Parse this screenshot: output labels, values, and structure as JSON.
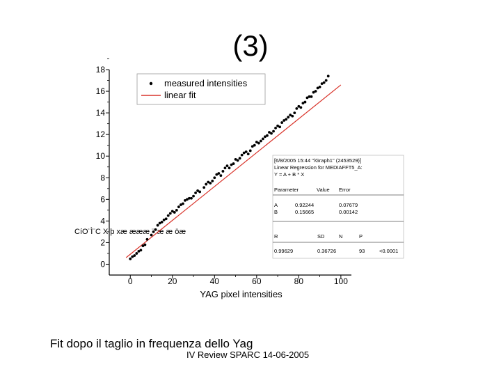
{
  "slide": {
    "title": "(3)",
    "caption": "Fit dopo il taglio in frequenza dello Yag",
    "footer": "IV Review SPARC 14-06-2005"
  },
  "chart_data": {
    "type": "scatter",
    "title": "",
    "xlabel": "YAG pixel intensities",
    "ylabel": "",
    "xlim": [
      -10,
      105
    ],
    "ylim": [
      -1,
      18
    ],
    "x_ticks": [
      "0",
      "20",
      "40",
      "60",
      "80",
      "100"
    ],
    "y_ticks": [
      "0",
      "2",
      "4",
      "6",
      "8",
      "10",
      "12",
      "14",
      "16",
      "18"
    ],
    "y_label_garble": "CíO¨Ì¨C X  þ xæ  æææ ¨¨æ æ öæ",
    "legend": [
      {
        "label": "measured intensities",
        "marker": "dot",
        "color": "#000000"
      },
      {
        "label": "linear fit",
        "marker": "line",
        "color": "#d9342b"
      }
    ],
    "legend_position": "top-left",
    "grid": false,
    "fit": {
      "A": 0.92244,
      "B": 0.15665
    },
    "series": [
      {
        "name": "measured intensities",
        "x": [
          0,
          1,
          2,
          3,
          4,
          5,
          6,
          7,
          8,
          10,
          11,
          12,
          13,
          14,
          15,
          16,
          17,
          18,
          19,
          20,
          21,
          22,
          23,
          24,
          25,
          26,
          27,
          28,
          29,
          30,
          31,
          32,
          33,
          35,
          36,
          37,
          38,
          39,
          40,
          41,
          42,
          43,
          44,
          45,
          46,
          47,
          48,
          49,
          50,
          51,
          52,
          53,
          54,
          55,
          56,
          57,
          58,
          59,
          60,
          61,
          62,
          63,
          64,
          65,
          66,
          67,
          68,
          69,
          70,
          71,
          72,
          73,
          74,
          75,
          76,
          77,
          78,
          79,
          80,
          81,
          82,
          83,
          84,
          85,
          86,
          87,
          88,
          89,
          90,
          91,
          92,
          93,
          94
        ],
        "y": [
          0.5,
          0.7,
          0.8,
          1.0,
          1.2,
          1.3,
          1.7,
          1.8,
          2.3,
          2.7,
          3.0,
          3.2,
          3.6,
          3.8,
          3.9,
          4.1,
          4.2,
          4.5,
          4.7,
          4.9,
          4.8,
          5.0,
          5.3,
          5.5,
          5.6,
          5.9,
          6.0,
          6.1,
          6.1,
          6.3,
          6.6,
          6.8,
          6.7,
          7.1,
          7.4,
          7.6,
          7.5,
          7.7,
          8.0,
          8.3,
          8.4,
          8.2,
          8.6,
          8.9,
          9.1,
          8.9,
          9.2,
          9.3,
          9.7,
          9.6,
          9.8,
          10.1,
          10.3,
          10.4,
          10.2,
          10.5,
          10.9,
          11.0,
          11.3,
          11.2,
          11.4,
          11.6,
          11.8,
          11.9,
          12.2,
          12.1,
          12.3,
          12.6,
          12.8,
          12.7,
          13.1,
          13.3,
          13.4,
          13.6,
          13.8,
          13.7,
          14.0,
          14.4,
          14.6,
          14.5,
          14.9,
          15.0,
          15.4,
          15.5,
          15.5,
          15.9,
          16.0,
          16.3,
          16.4,
          16.7,
          16.8,
          17.0,
          17.4
        ]
      }
    ],
    "stats_box": {
      "header": "[6/8/2005 15:44 \"/Graph1\" (2453529)]",
      "title": "Linear Regression for MEDIAFFT5_A:",
      "equation": "Y = A + B * X",
      "columns": [
        "Parameter",
        "Value",
        "Error"
      ],
      "rows": [
        [
          "A",
          "0.92244",
          "0.07679"
        ],
        [
          "B",
          "0.15665",
          "0.00142"
        ]
      ],
      "columns2": [
        "R",
        "SD",
        "N",
        "P"
      ],
      "rows2": [
        [
          "0.99629",
          "0.36726",
          "93",
          "<0.0001"
        ]
      ]
    }
  }
}
